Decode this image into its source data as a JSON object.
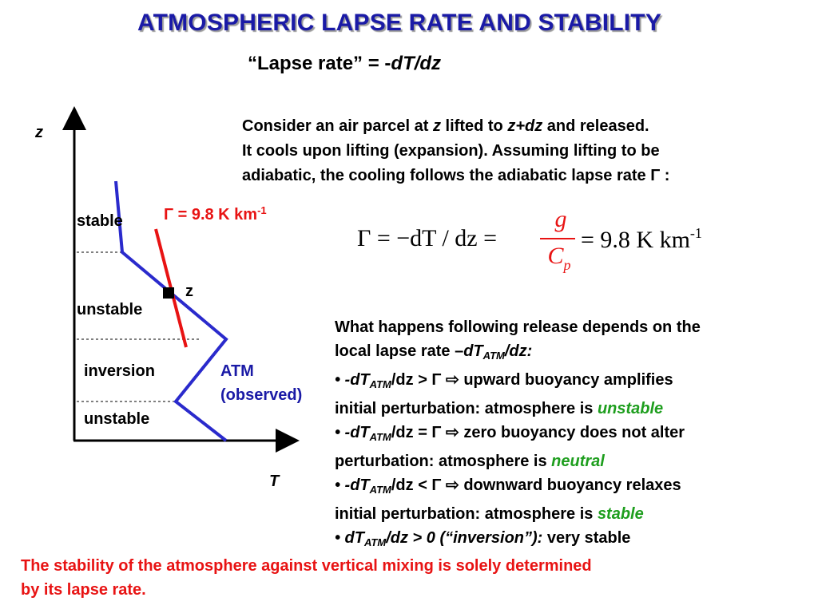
{
  "title": "ATMOSPHERIC LAPSE RATE AND STABILITY",
  "subtitle": {
    "text": "“Lapse rate” = -",
    "math": "dT/dz"
  },
  "diagram": {
    "axis_y_label": "z",
    "axis_x_label": "T",
    "gamma_label": "Γ = 9.8 K km",
    "gamma_exp": "-1",
    "parcel_label": "z",
    "atm_label_1": "ATM",
    "atm_label_2": "(observed)",
    "layers": [
      "stable",
      "unstable",
      "inversion",
      "unstable"
    ],
    "colors": {
      "atm": "#2a2acc",
      "gamma": "#e81313",
      "axis": "#000000"
    }
  },
  "intro": {
    "l1_a": "Consider an air parcel at ",
    "l1_z": "z",
    "l1_b": " lifted to ",
    "l1_zdz": "z+dz",
    "l1_c": " and released.",
    "l2": "It cools upon lifting (expansion).  Assuming lifting to be",
    "l3": "adiabatic, the cooling follows the adiabatic lapse rate Γ :"
  },
  "formula": {
    "lhs": "Γ = −dT / dz =",
    "num": "g",
    "den": "C",
    "den_sub": "p",
    "rhs": "= 9.8 K km",
    "rhs_exp": "-1"
  },
  "explanation": {
    "l1": "What happens following release depends on the",
    "l2_a": "local lapse rate –",
    "l2_dt": "dT",
    "l2_sub": "ATM",
    "l2_b": "/dz:",
    "b1_a": "• -dT",
    "b1_sub": "ATM",
    "b1_b": "/dz > Γ ⇨   upward buoyancy amplifies",
    "b1_c": "initial perturbation: atmosphere is ",
    "b1_word": "unstable",
    "b2_a": "• -dT",
    "b2_sub": "ATM",
    "b2_b": "/dz = Γ ⇨   zero buoyancy does not alter",
    "b2_c": "perturbation: atmosphere is ",
    "b2_word": "neutral",
    "b3_a": "• -dT",
    "b3_sub": "ATM",
    "b3_b": "/dz < Γ ⇨   downward buoyancy relaxes",
    "b3_c": "initial perturbation: atmosphere is ",
    "b3_word": "stable",
    "b4_a": "• dT",
    "b4_sub": "ATM",
    "b4_b": "/dz > 0 (“inversion”):",
    "b4_c": " very stable"
  },
  "conclusion": {
    "l1": "The stability of the atmosphere against vertical mixing is solely determined",
    "l2": "by its lapse rate."
  }
}
